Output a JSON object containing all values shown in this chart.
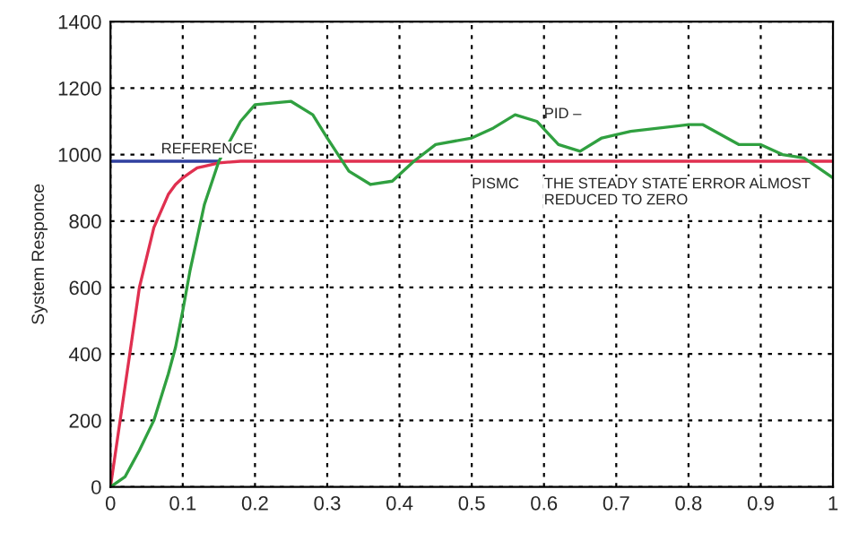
{
  "chart_data": {
    "type": "line",
    "ylabel": "System Responce",
    "x": [
      0,
      0.02,
      0.03,
      0.04,
      0.06,
      0.08,
      0.09,
      0.1,
      0.11,
      0.12,
      0.13,
      0.15,
      0.18,
      0.2,
      0.25,
      0.28,
      0.3,
      0.33,
      0.36,
      0.39,
      0.42,
      0.45,
      0.5,
      0.53,
      0.56,
      0.59,
      0.62,
      0.65,
      0.68,
      0.72,
      0.8,
      0.82,
      0.87,
      0.9,
      0.93,
      0.96,
      1.0
    ],
    "series": [
      {
        "color": "#3040a0",
        "values": [
          980,
          980,
          980,
          980,
          980,
          980,
          980,
          980,
          980,
          980,
          980,
          980,
          null,
          null,
          null,
          null,
          null,
          null,
          null,
          null,
          null,
          null,
          null,
          null,
          null,
          null,
          null,
          null,
          null,
          null,
          null,
          null,
          null,
          null,
          null,
          null,
          null
        ]
      },
      {
        "color": "#e03050",
        "values": [
          0,
          300,
          450,
          600,
          780,
          880,
          910,
          930,
          945,
          960,
          965,
          975,
          980,
          980,
          980,
          980,
          980,
          980,
          980,
          980,
          980,
          980,
          980,
          980,
          980,
          980,
          980,
          980,
          980,
          980,
          980,
          980,
          980,
          980,
          980,
          980,
          980
        ]
      },
      {
        "color": "#30a040",
        "values": [
          0,
          30,
          70,
          110,
          200,
          340,
          420,
          530,
          650,
          750,
          850,
          980,
          1100,
          1150,
          1160,
          1120,
          1050,
          950,
          910,
          920,
          980,
          1030,
          1050,
          1080,
          1120,
          1100,
          1030,
          1010,
          1050,
          1070,
          1090,
          1090,
          1030,
          1030,
          1000,
          990,
          930
        ]
      }
    ],
    "xlim": [
      0,
      1
    ],
    "xticks": [
      0,
      0.1,
      0.2,
      0.3,
      0.4,
      0.5,
      0.6,
      0.7,
      0.8,
      0.9,
      1
    ],
    "ylim": [
      0,
      1400
    ],
    "yticks": [
      0,
      200,
      400,
      600,
      800,
      1000,
      1200,
      1400
    ],
    "grid": true,
    "line_style": "solid",
    "marker": "none",
    "annotations": [
      "REFERENCE",
      {
        "text": "PID –",
        "x": 0.6,
        "y": 1100
      },
      "PISMC",
      "THE STEADY STATE ERROR ALMOST\nREDUCED TO ZERO"
    ]
  }
}
